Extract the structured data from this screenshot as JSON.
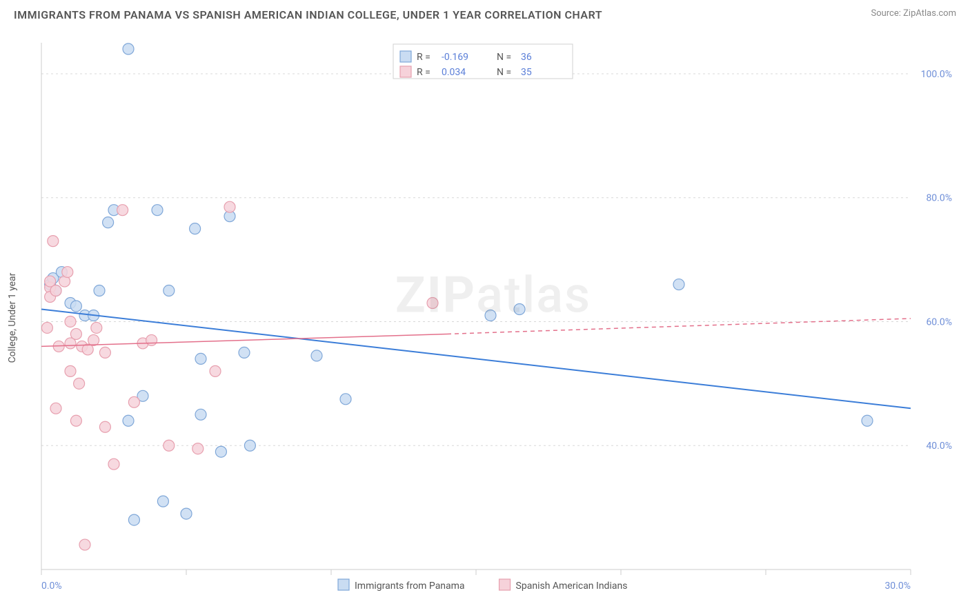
{
  "header": {
    "title": "IMMIGRANTS FROM PANAMA VS SPANISH AMERICAN INDIAN COLLEGE, UNDER 1 YEAR CORRELATION CHART",
    "source": "Source: ZipAtlas.com"
  },
  "watermark": "ZIPatlas",
  "axes": {
    "y_label": "College, Under 1 year",
    "x_min": 0,
    "x_max": 30,
    "y_min": 20,
    "y_max": 105,
    "x_ticks": [
      0,
      5,
      10,
      15,
      20,
      25,
      30
    ],
    "x_tick_labels": [
      "0.0%",
      "",
      "",
      "",
      "",
      "",
      "30.0%"
    ],
    "y_gridlines": [
      40,
      60,
      80,
      100
    ],
    "y_tick_labels": [
      "40.0%",
      "60.0%",
      "80.0%",
      "100.0%"
    ],
    "grid_color": "#d8d8d8",
    "axis_color": "#cccccc",
    "tick_label_color": "#6f8fd8",
    "tick_label_fontsize": 14
  },
  "series": [
    {
      "name": "Immigrants from Panama",
      "color_fill": "#c9dcf2",
      "color_stroke": "#7fa7d8",
      "line_color": "#3b7dd8",
      "line_width": 2,
      "r_label": "R =",
      "r_value": "-0.169",
      "n_label": "N =",
      "n_value": "36",
      "trend": {
        "x1": 0,
        "y1": 62,
        "x2": 30,
        "y2": 46
      },
      "points": [
        [
          0.3,
          66
        ],
        [
          0.5,
          65
        ],
        [
          0.4,
          67
        ],
        [
          0.7,
          68
        ],
        [
          1.0,
          63
        ],
        [
          1.2,
          62.5
        ],
        [
          1.5,
          61
        ],
        [
          1.8,
          61
        ],
        [
          2.0,
          65
        ],
        [
          2.3,
          76
        ],
        [
          2.5,
          78
        ],
        [
          3.0,
          104
        ],
        [
          3.0,
          44
        ],
        [
          3.2,
          28
        ],
        [
          3.5,
          48
        ],
        [
          4.0,
          78
        ],
        [
          4.2,
          31
        ],
        [
          4.4,
          65
        ],
        [
          5.0,
          29
        ],
        [
          5.3,
          75
        ],
        [
          5.5,
          45
        ],
        [
          5.5,
          54
        ],
        [
          6.2,
          39
        ],
        [
          6.5,
          77
        ],
        [
          7.0,
          55
        ],
        [
          7.2,
          40
        ],
        [
          9.5,
          54.5
        ],
        [
          10.5,
          47.5
        ],
        [
          15.5,
          61
        ],
        [
          16.5,
          62
        ],
        [
          22.0,
          66
        ],
        [
          28.5,
          44
        ]
      ]
    },
    {
      "name": "Spanish American Indians",
      "color_fill": "#f6d2da",
      "color_stroke": "#e79fae",
      "line_color": "#e36f8a",
      "line_width": 1.5,
      "r_label": "R =",
      "r_value": "0.034",
      "n_label": "N =",
      "n_value": "35",
      "trend_solid": {
        "x1": 0,
        "y1": 56,
        "x2": 14,
        "y2": 58
      },
      "trend_dashed": {
        "x1": 14,
        "y1": 58,
        "x2": 30,
        "y2": 60.5
      },
      "points": [
        [
          0.2,
          59
        ],
        [
          0.3,
          65.5
        ],
        [
          0.3,
          64
        ],
        [
          0.3,
          66.5
        ],
        [
          0.4,
          73
        ],
        [
          0.5,
          65
        ],
        [
          0.5,
          46
        ],
        [
          0.6,
          56
        ],
        [
          0.8,
          66.5
        ],
        [
          0.9,
          68
        ],
        [
          1.0,
          52
        ],
        [
          1.0,
          60
        ],
        [
          1.0,
          56.5
        ],
        [
          1.2,
          58
        ],
        [
          1.3,
          50
        ],
        [
          1.4,
          56
        ],
        [
          1.5,
          24
        ],
        [
          1.2,
          44
        ],
        [
          1.6,
          55.5
        ],
        [
          1.8,
          57
        ],
        [
          1.9,
          59
        ],
        [
          2.2,
          55
        ],
        [
          2.2,
          43
        ],
        [
          2.5,
          37
        ],
        [
          2.8,
          78
        ],
        [
          3.2,
          47
        ],
        [
          3.5,
          56.5
        ],
        [
          3.8,
          57
        ],
        [
          4.4,
          40
        ],
        [
          5.4,
          39.5
        ],
        [
          6.0,
          52
        ],
        [
          6.5,
          78.5
        ],
        [
          13.5,
          63
        ]
      ]
    }
  ],
  "legend_top": {
    "bg": "#ffffff",
    "border": "#d0d0d0",
    "label_color": "#555555",
    "value_color": "#5b7fd8"
  },
  "legend_bottom": {
    "items": [
      {
        "label": "Immigrants from Panama",
        "swatch_fill": "#c9dcf2",
        "swatch_stroke": "#7fa7d8"
      },
      {
        "label": "Spanish American Indians",
        "swatch_fill": "#f6d2da",
        "swatch_stroke": "#e79fae"
      }
    ]
  },
  "plot": {
    "bg": "#ffffff",
    "marker_radius": 8,
    "marker_stroke_width": 1.2
  }
}
